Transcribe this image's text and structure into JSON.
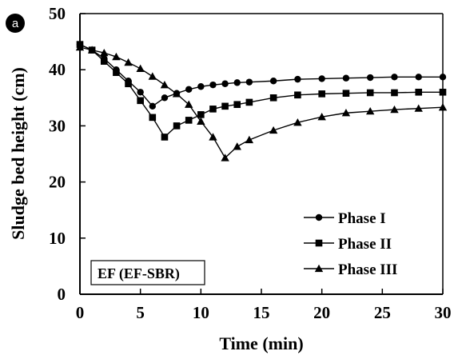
{
  "chart_data": {
    "type": "line",
    "panel_label": "a",
    "xlabel": "Time (min)",
    "ylabel": "Sludge bed height (cm)",
    "xlim": [
      0,
      30
    ],
    "ylim": [
      0,
      50
    ],
    "xticks": [
      0,
      5,
      10,
      15,
      20,
      25,
      30
    ],
    "yticks": [
      0,
      10,
      20,
      30,
      40,
      50
    ],
    "grid": false,
    "legend_position": "bottom-right",
    "annotation": "EF (EF-SBR)",
    "series": [
      {
        "name": "Phase I",
        "marker": "circle",
        "x": [
          0,
          1,
          2,
          3,
          4,
          5,
          6,
          7,
          8,
          9,
          10,
          11,
          12,
          13,
          14,
          16,
          18,
          20,
          22,
          24,
          26,
          28,
          30
        ],
        "y": [
          44.5,
          43.5,
          42,
          40,
          38,
          36,
          33.5,
          35,
          35.8,
          36.5,
          37,
          37.3,
          37.5,
          37.7,
          37.8,
          38,
          38.3,
          38.4,
          38.5,
          38.6,
          38.7,
          38.7,
          38.7
        ]
      },
      {
        "name": "Phase II",
        "marker": "square",
        "x": [
          0,
          1,
          2,
          3,
          4,
          5,
          6,
          7,
          8,
          9,
          10,
          11,
          12,
          13,
          14,
          16,
          18,
          20,
          22,
          24,
          26,
          28,
          30
        ],
        "y": [
          44.5,
          43.5,
          41.5,
          39.5,
          37.5,
          34.5,
          31.5,
          28,
          30,
          31,
          32,
          33,
          33.5,
          33.8,
          34.2,
          35,
          35.5,
          35.7,
          35.8,
          35.9,
          35.9,
          36,
          36
        ]
      },
      {
        "name": "Phase III",
        "marker": "triangle",
        "x": [
          0,
          1,
          2,
          3,
          4,
          5,
          6,
          7,
          8,
          9,
          10,
          11,
          12,
          13,
          14,
          16,
          18,
          20,
          22,
          24,
          26,
          28,
          30
        ],
        "y": [
          44,
          43.5,
          43,
          42.3,
          41.3,
          40.2,
          38.8,
          37.3,
          35.7,
          33.8,
          30.8,
          28,
          24.3,
          26.3,
          27.5,
          29.2,
          30.6,
          31.6,
          32.3,
          32.6,
          32.9,
          33.1,
          33.3
        ]
      }
    ]
  }
}
